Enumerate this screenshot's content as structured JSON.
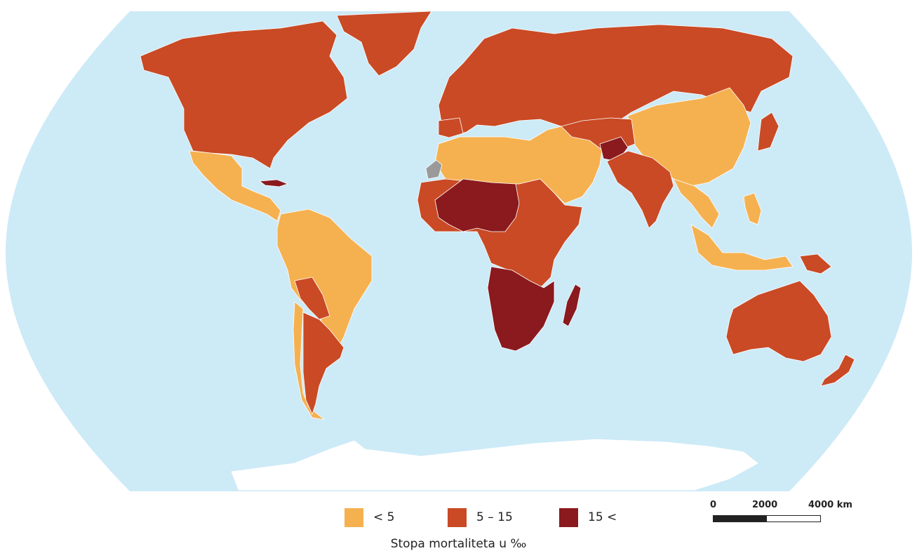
{
  "colors": {
    "ocean": "#cdeaf7",
    "antarctica": "#ffffff",
    "low": "#f5b150",
    "mid": "#c94a25",
    "high": "#8a1a1e",
    "nodata": "#9a9a9a",
    "border": "#ffffff"
  },
  "legend": {
    "items": [
      {
        "label": "< 5",
        "color": "#f5b150"
      },
      {
        "label": "5 – 15",
        "color": "#c94a25"
      },
      {
        "label": "15 <",
        "color": "#8a1a1e"
      }
    ],
    "title": "Stopa mortaliteta u ‰"
  },
  "scale": {
    "tick0": "0",
    "tick1": "2000",
    "tick2": "4000 km"
  }
}
